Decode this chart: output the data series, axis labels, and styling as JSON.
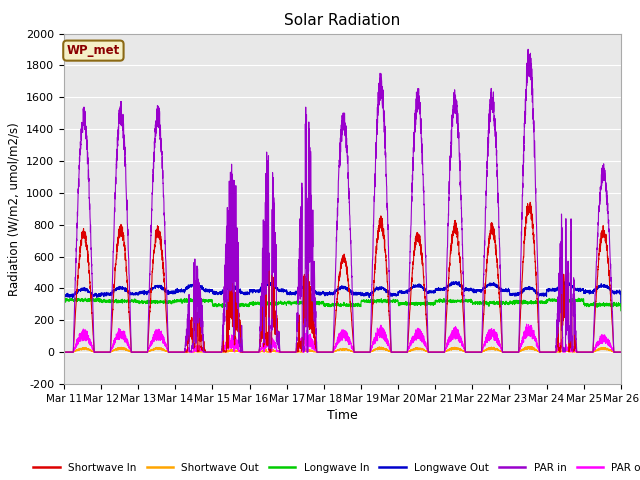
{
  "title": "Solar Radiation",
  "ylabel": "Radiation (W/m2, umol/m2/s)",
  "xlabel": "Time",
  "ylim": [
    -200,
    2000
  ],
  "yticks": [
    -200,
    0,
    200,
    400,
    600,
    800,
    1000,
    1200,
    1400,
    1600,
    1800,
    2000
  ],
  "x_ticks": [
    11,
    12,
    13,
    14,
    15,
    16,
    17,
    18,
    19,
    20,
    21,
    22,
    23,
    24,
    25,
    26
  ],
  "x_tick_labels": [
    "Mar 11",
    "Mar 12",
    "Mar 13",
    "Mar 14",
    "Mar 15",
    "Mar 16",
    "Mar 17",
    "Mar 18",
    "Mar 19",
    "Mar 20",
    "Mar 21",
    "Mar 22",
    "Mar 23",
    "Mar 24",
    "Mar 25",
    "Mar 26"
  ],
  "plot_bg_color": "#e8e8e8",
  "grid_color": "#ffffff",
  "annotation_text": "WP_met",
  "annotation_box_color": "#f5f0c8",
  "annotation_border_color": "#8b6914",
  "annotation_text_color": "#8b0000",
  "series": {
    "shortwave_in": {
      "color": "#dd0000",
      "label": "Shortwave In",
      "lw": 0.8
    },
    "shortwave_out": {
      "color": "#ffa500",
      "label": "Shortwave Out",
      "lw": 0.8
    },
    "longwave_in": {
      "color": "#00cc00",
      "label": "Longwave In",
      "lw": 0.8
    },
    "longwave_out": {
      "color": "#0000cc",
      "label": "Longwave Out",
      "lw": 0.8
    },
    "par_in": {
      "color": "#9900cc",
      "label": "PAR in",
      "lw": 0.8
    },
    "par_out": {
      "color": "#ff00ff",
      "label": "PAR out",
      "lw": 0.8
    }
  },
  "figsize": [
    6.4,
    4.8
  ],
  "dpi": 100
}
